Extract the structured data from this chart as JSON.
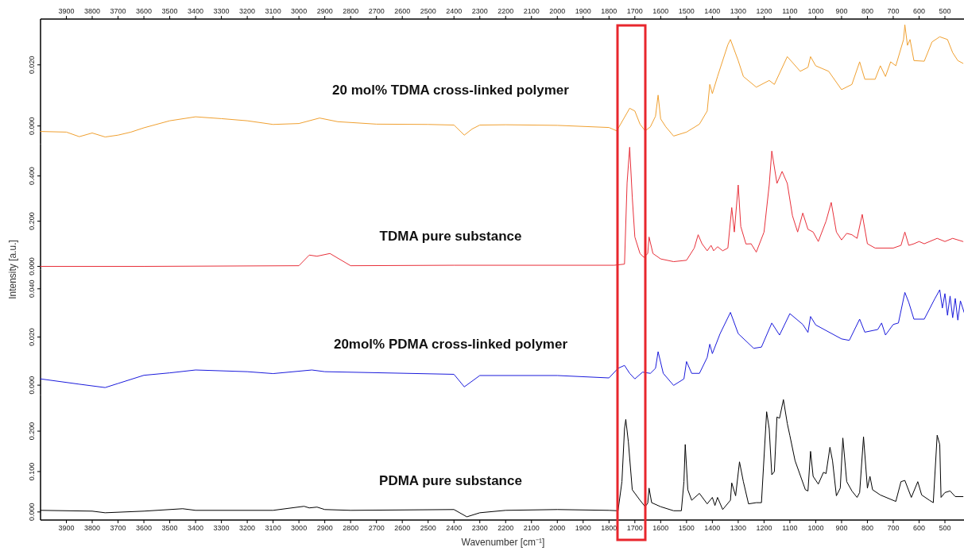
{
  "chart_data": [
    {
      "type": "line",
      "xlim": [
        4000,
        420
      ],
      "x2lim": [
        4000,
        420
      ],
      "x2ticks": [
        3900,
        3800,
        3700,
        3600,
        3500,
        3400,
        3300,
        3200,
        3100,
        3000,
        2900,
        2800,
        2700,
        2600,
        2500,
        2400,
        2300,
        2200,
        2100,
        2000,
        1900,
        1800,
        1700,
        1600,
        1500,
        1400,
        1300,
        1200,
        1100,
        1000,
        900,
        800,
        700,
        600,
        500
      ],
      "ylim": [
        -0.006,
        0.035
      ],
      "yticks": [
        {
          "value": 0,
          "label": "0.000"
        },
        {
          "value": 0.02,
          "label": "0.020"
        }
      ],
      "tick_labels": "y",
      "series": [
        {
          "name": "20 mol% TDMA cross-linked polymer",
          "color": "#f0a030",
          "x": [
            4000,
            3900,
            3850,
            3800,
            3750,
            3700,
            3650,
            3600,
            3500,
            3400,
            3300,
            3200,
            3100,
            3000,
            2920,
            2850,
            2700,
            2500,
            2400,
            2360,
            2330,
            2300,
            2200,
            2000,
            1800,
            1770,
            1720,
            1700,
            1680,
            1660,
            1640,
            1620,
            1610,
            1600,
            1580,
            1550,
            1500,
            1450,
            1420,
            1410,
            1400,
            1380,
            1340,
            1330,
            1300,
            1280,
            1230,
            1180,
            1160,
            1110,
            1060,
            1030,
            1020,
            1000,
            950,
            900,
            860,
            830,
            810,
            770,
            750,
            730,
            710,
            690,
            660,
            655,
            645,
            635,
            620,
            580,
            550,
            520,
            490,
            470,
            450,
            430
          ],
          "values": [
            -0.0018,
            -0.002,
            -0.0035,
            -0.0023,
            -0.0036,
            -0.003,
            -0.002,
            -0.0006,
            0.0017,
            0.003,
            0.0024,
            0.0017,
            0.0005,
            0.0008,
            0.0026,
            0.0014,
            0.0006,
            0.0005,
            0.0003,
            -0.003,
            -0.001,
            0.0003,
            0.0004,
            0.0002,
            -0.0005,
            -0.0016,
            0.0058,
            0.0049,
            0.0006,
            -0.0016,
            -0.0003,
            0.0032,
            0.0101,
            0.0023,
            -0.0003,
            -0.0033,
            -0.002,
            0.0006,
            0.0049,
            0.0136,
            0.0106,
            0.0162,
            0.0266,
            0.0283,
            0.0214,
            0.0162,
            0.0127,
            0.0149,
            0.0136,
            0.0227,
            0.0179,
            0.0192,
            0.0227,
            0.0197,
            0.0179,
            0.0119,
            0.0136,
            0.021,
            0.0153,
            0.0153,
            0.0197,
            0.0162,
            0.021,
            0.0197,
            0.0283,
            0.0331,
            0.0264,
            0.0283,
            0.0214,
            0.0212,
            0.0275,
            0.0292,
            0.0283,
            0.024,
            0.0214,
            0.0205
          ]
        }
      ]
    },
    {
      "type": "line",
      "xlim": [
        4000,
        420
      ],
      "ylim": [
        -0.014,
        0.54
      ],
      "yticks": [
        {
          "value": 0,
          "label": "0.000"
        },
        {
          "value": 0.2,
          "label": "0.200"
        },
        {
          "value": 0.4,
          "label": "0.400"
        }
      ],
      "tick_labels": "y",
      "ylabel": "Intensity [a.u.]",
      "series": [
        {
          "name": "TDMA pure substance",
          "color": "#e8303a",
          "x": [
            4000,
            3600,
            3000,
            2960,
            2930,
            2880,
            2800,
            2400,
            1780,
            1740,
            1730,
            1720,
            1710,
            1700,
            1680,
            1665,
            1650,
            1645,
            1630,
            1600,
            1550,
            1500,
            1470,
            1455,
            1440,
            1420,
            1405,
            1395,
            1380,
            1360,
            1340,
            1325,
            1315,
            1300,
            1290,
            1270,
            1250,
            1230,
            1200,
            1180,
            1170,
            1150,
            1130,
            1110,
            1090,
            1070,
            1050,
            1030,
            1010,
            990,
            960,
            940,
            920,
            900,
            880,
            860,
            840,
            820,
            800,
            770,
            700,
            670,
            655,
            640,
            620,
            600,
            580,
            530,
            500,
            470,
            430
          ],
          "values": [
            0,
            0,
            0.003,
            0.05,
            0.045,
            0.057,
            0.003,
            0.005,
            0.005,
            0.01,
            0.37,
            0.527,
            0.307,
            0.13,
            0.057,
            0.04,
            0.057,
            0.13,
            0.057,
            0.033,
            0.021,
            0.027,
            0.081,
            0.14,
            0.1,
            0.069,
            0.093,
            0.069,
            0.087,
            0.069,
            0.081,
            0.26,
            0.152,
            0.36,
            0.176,
            0.099,
            0.1,
            0.063,
            0.152,
            0.36,
            0.51,
            0.367,
            0.42,
            0.367,
            0.224,
            0.152,
            0.236,
            0.164,
            0.152,
            0.11,
            0.2,
            0.283,
            0.152,
            0.117,
            0.146,
            0.14,
            0.124,
            0.23,
            0.1,
            0.081,
            0.081,
            0.093,
            0.152,
            0.093,
            0.1,
            0.11,
            0.1,
            0.124,
            0.11,
            0.124,
            0.11
          ]
        }
      ]
    },
    {
      "type": "line",
      "xlim": [
        4000,
        420
      ],
      "ylim": [
        -0.004,
        0.048
      ],
      "yticks": [
        {
          "value": 0,
          "label": "0.000"
        },
        {
          "value": 0.02,
          "label": "0.020"
        },
        {
          "value": 0.04,
          "label": "0.040"
        }
      ],
      "tick_labels": "y",
      "series": [
        {
          "name": "20mol% PDMA cross-linked polymer",
          "color": "#1a1adc",
          "x": [
            4000,
            3850,
            3750,
            3700,
            3600,
            3500,
            3400,
            3200,
            3100,
            2950,
            2900,
            2400,
            2360,
            2300,
            2000,
            1800,
            1765,
            1740,
            1720,
            1700,
            1670,
            1640,
            1620,
            1610,
            1590,
            1550,
            1510,
            1500,
            1480,
            1450,
            1420,
            1410,
            1400,
            1370,
            1330,
            1300,
            1240,
            1210,
            1170,
            1140,
            1100,
            1050,
            1030,
            1020,
            1000,
            900,
            870,
            830,
            810,
            760,
            745,
            730,
            700,
            680,
            655,
            640,
            620,
            580,
            540,
            520,
            510,
            500,
            490,
            480,
            470,
            460,
            450,
            440,
            425
          ],
          "values": [
            0.0026,
            0.0004,
            -0.001,
            0.0007,
            0.0041,
            0.0051,
            0.0063,
            0.0056,
            0.0048,
            0.0063,
            0.0056,
            0.0045,
            -0.0007,
            0.004,
            0.004,
            0.003,
            0.007,
            0.0082,
            0.0049,
            0.0026,
            0.0054,
            0.0049,
            0.007,
            0.0139,
            0.0049,
            -0.0001,
            0.0026,
            0.0098,
            0.0049,
            0.0049,
            0.0115,
            0.017,
            0.0131,
            0.0214,
            0.0302,
            0.0214,
            0.0153,
            0.0158,
            0.0258,
            0.0208,
            0.0297,
            0.0252,
            0.0219,
            0.0285,
            0.025,
            0.0192,
            0.0186,
            0.0274,
            0.022,
            0.0231,
            0.0258,
            0.0208,
            0.0252,
            0.0258,
            0.0385,
            0.0344,
            0.0274,
            0.0274,
            0.0357,
            0.0396,
            0.032,
            0.038,
            0.029,
            0.037,
            0.028,
            0.036,
            0.027,
            0.035,
            0.03
          ]
        }
      ]
    },
    {
      "type": "line",
      "xlim": [
        4000,
        420
      ],
      "xticks": [
        3900,
        3800,
        3700,
        3600,
        3500,
        3400,
        3300,
        3200,
        3100,
        3000,
        2900,
        2800,
        2700,
        2600,
        2500,
        2400,
        2300,
        2200,
        2100,
        2000,
        1900,
        1800,
        1700,
        1600,
        1500,
        1400,
        1300,
        1200,
        1100,
        1000,
        900,
        800,
        700,
        600,
        500
      ],
      "ylim": [
        -0.02,
        0.29
      ],
      "yticks": [
        {
          "value": 0,
          "label": "0.000"
        },
        {
          "value": 0.1,
          "label": "0.100"
        },
        {
          "value": 0.2,
          "label": "0.200"
        }
      ],
      "xlabel": "Wavenumber [cm⁻¹]",
      "series": [
        {
          "name": "PDMA pure substance",
          "color": "#000000",
          "x": [
            4000,
            3800,
            3750,
            3600,
            3450,
            3400,
            3100,
            2980,
            2960,
            2930,
            2900,
            2800,
            2400,
            2350,
            2300,
            2200,
            2000,
            1800,
            1765,
            1750,
            1740,
            1735,
            1725,
            1710,
            1680,
            1660,
            1650,
            1645,
            1635,
            1600,
            1550,
            1520,
            1510,
            1505,
            1495,
            1480,
            1450,
            1420,
            1400,
            1390,
            1380,
            1360,
            1330,
            1325,
            1310,
            1295,
            1280,
            1260,
            1230,
            1210,
            1190,
            1180,
            1170,
            1160,
            1150,
            1140,
            1125,
            1110,
            1100,
            1080,
            1040,
            1030,
            1020,
            1010,
            990,
            970,
            960,
            945,
            935,
            920,
            905,
            895,
            880,
            860,
            840,
            830,
            815,
            800,
            790,
            780,
            750,
            690,
            670,
            655,
            630,
            605,
            590,
            560,
            545,
            530,
            520,
            515,
            500,
            480,
            460,
            430
          ],
          "values": [
            0.004,
            0.002,
            -0.002,
            0.002,
            0.008,
            0.004,
            0.004,
            0.014,
            0.01,
            0.012,
            0.006,
            0.004,
            0.006,
            -0.012,
            -0.002,
            0.004,
            0.006,
            0.004,
            0.003,
            0.075,
            0.206,
            0.229,
            0.173,
            0.055,
            0.029,
            0.013,
            0.022,
            0.059,
            0.023,
            0.013,
            0.003,
            0.003,
            0.075,
            0.167,
            0.055,
            0.029,
            0.046,
            0.02,
            0.036,
            0.016,
            0.036,
            0.006,
            0.029,
            0.072,
            0.04,
            0.124,
            0.075,
            0.02,
            0.023,
            0.023,
            0.248,
            0.206,
            0.092,
            0.1,
            0.235,
            0.232,
            0.278,
            0.219,
            0.189,
            0.127,
            0.055,
            0.052,
            0.15,
            0.088,
            0.069,
            0.098,
            0.095,
            0.16,
            0.127,
            0.04,
            0.059,
            0.183,
            0.075,
            0.052,
            0.036,
            0.048,
            0.186,
            0.059,
            0.088,
            0.055,
            0.042,
            0.026,
            0.075,
            0.078,
            0.036,
            0.075,
            0.042,
            0.029,
            0.023,
            0.19,
            0.167,
            0.036,
            0.048,
            0.052,
            0.038,
            0.038
          ]
        }
      ]
    }
  ]
}
